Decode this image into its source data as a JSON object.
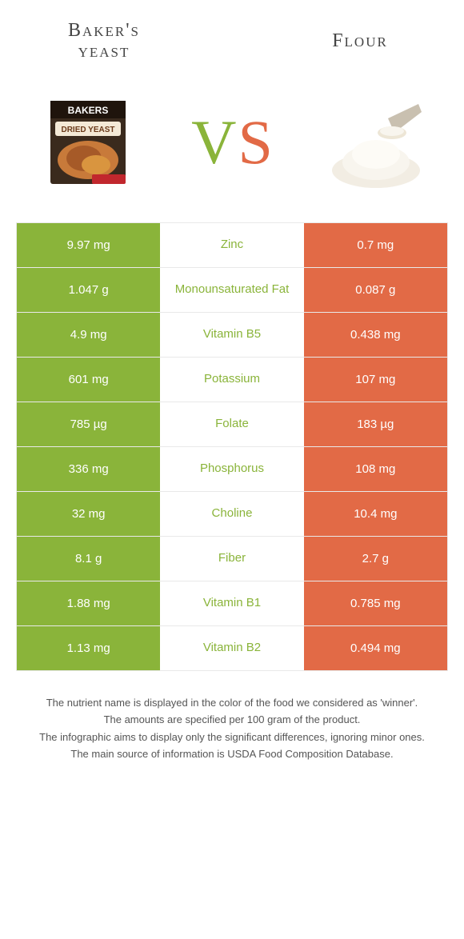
{
  "colors": {
    "green": "#8ab43a",
    "orange": "#e26a46",
    "white": "#ffffff",
    "border": "#e9e9e9",
    "text": "#333333"
  },
  "header": {
    "left_title_line1": "Baker's",
    "left_title_line2": "yeast",
    "right_title": "Flour",
    "vs_v": "V",
    "vs_s": "S"
  },
  "rows": [
    {
      "left": "9.97 mg",
      "mid": "Zinc",
      "right": "0.7 mg",
      "winner": "left"
    },
    {
      "left": "1.047 g",
      "mid": "Monounsaturated Fat",
      "right": "0.087 g",
      "winner": "left"
    },
    {
      "left": "4.9 mg",
      "mid": "Vitamin B5",
      "right": "0.438 mg",
      "winner": "left"
    },
    {
      "left": "601 mg",
      "mid": "Potassium",
      "right": "107 mg",
      "winner": "left"
    },
    {
      "left": "785 µg",
      "mid": "Folate",
      "right": "183 µg",
      "winner": "left"
    },
    {
      "left": "336 mg",
      "mid": "Phosphorus",
      "right": "108 mg",
      "winner": "left"
    },
    {
      "left": "32 mg",
      "mid": "Choline",
      "right": "10.4 mg",
      "winner": "left"
    },
    {
      "left": "8.1 g",
      "mid": "Fiber",
      "right": "2.7 g",
      "winner": "left"
    },
    {
      "left": "1.88 mg",
      "mid": "Vitamin B1",
      "right": "0.785 mg",
      "winner": "left"
    },
    {
      "left": "1.13 mg",
      "mid": "Vitamin B2",
      "right": "0.494 mg",
      "winner": "left"
    }
  ],
  "footnotes": [
    "The nutrient name is displayed in the color of the food we considered as 'winner'.",
    "The amounts are specified per 100 gram of the product.",
    "The infographic aims to display only the significant differences, ignoring minor ones.",
    "The main source of information is USDA Food Composition Database."
  ]
}
